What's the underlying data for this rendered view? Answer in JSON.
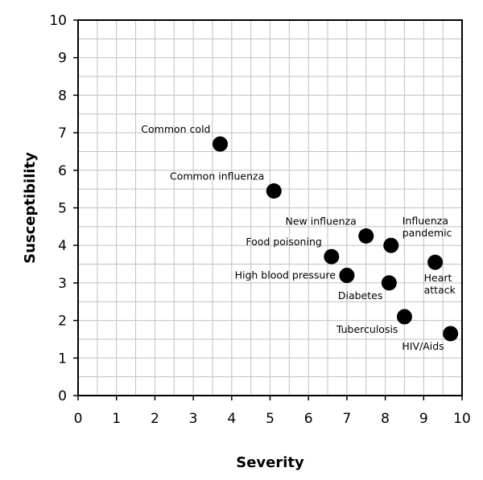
{
  "chart_data": {
    "type": "scatter",
    "xlabel": "Severity",
    "ylabel": "Susceptibility",
    "xlim": [
      0,
      10
    ],
    "ylim": [
      0,
      10
    ],
    "x_ticks": [
      "0",
      "1",
      "2",
      "3",
      "4",
      "5",
      "6",
      "7",
      "8",
      "9",
      "10"
    ],
    "y_ticks": [
      "0",
      "1",
      "2",
      "3",
      "4",
      "5",
      "6",
      "7",
      "8",
      "9",
      "10"
    ],
    "minor_grid_step": 0.5,
    "grid": true,
    "legend": "none",
    "marker_color": "#000000",
    "grid_color": "#c0c0c0",
    "points": [
      {
        "label": [
          "Common cold"
        ],
        "x": 3.7,
        "y": 6.7,
        "label_side": "upper-left"
      },
      {
        "label": [
          "Common influenza"
        ],
        "x": 5.1,
        "y": 5.45,
        "label_side": "upper-left"
      },
      {
        "label": [
          "New influenza"
        ],
        "x": 7.5,
        "y": 4.25,
        "label_side": "upper-left"
      },
      {
        "label": [
          "Influenza",
          "pandemic"
        ],
        "x": 8.15,
        "y": 4.0,
        "label_side": "upper-right"
      },
      {
        "label": [
          "Food poisoning"
        ],
        "x": 6.6,
        "y": 3.7,
        "label_side": "upper-left"
      },
      {
        "label": [
          "Heart",
          "attack"
        ],
        "x": 9.3,
        "y": 3.55,
        "label_side": "below"
      },
      {
        "label": [
          "High blood pressure"
        ],
        "x": 7.0,
        "y": 3.2,
        "label_side": "left"
      },
      {
        "label": [
          "Diabetes"
        ],
        "x": 8.1,
        "y": 3.0,
        "label_side": "lower-left"
      },
      {
        "label": [
          "Tuberculosis"
        ],
        "x": 8.5,
        "y": 2.1,
        "label_side": "lower-left"
      },
      {
        "label": [
          "HIV/Aids"
        ],
        "x": 9.7,
        "y": 1.65,
        "label_side": "lower-left"
      }
    ]
  }
}
